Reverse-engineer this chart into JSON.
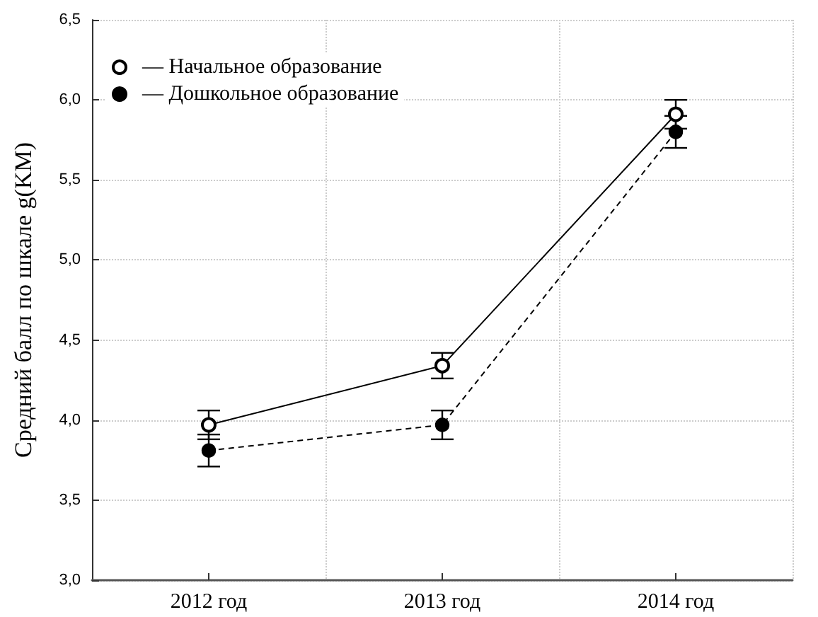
{
  "chart_data": {
    "type": "line",
    "ylabel": "Средний балл по шкале g(KM)",
    "categories": [
      "2012 год",
      "2013 год",
      "2014 год"
    ],
    "series": [
      {
        "name": "— Начальное образование",
        "color": "#000000",
        "values": [
          3.97,
          4.34,
          5.91
        ],
        "errors": [
          0.09,
          0.08,
          0.09
        ],
        "line_style": "solid"
      },
      {
        "name": "— Дошкольное образование",
        "color": "#000000",
        "values": [
          3.81,
          3.97,
          5.8
        ],
        "errors": [
          0.1,
          0.09,
          0.1
        ],
        "line_style": "dashed"
      }
    ],
    "ylim": [
      3.0,
      6.5
    ],
    "yticks": [
      {
        "value": 3.0,
        "label": "3,0"
      },
      {
        "value": 3.5,
        "label": "3,5"
      },
      {
        "value": 4.0,
        "label": "4,0"
      },
      {
        "value": 4.5,
        "label": "4,5"
      },
      {
        "value": 5.0,
        "label": "5,0"
      },
      {
        "value": 5.5,
        "label": "5,5"
      },
      {
        "value": 6.0,
        "label": "6,0"
      },
      {
        "value": 6.5,
        "label": "6,5"
      }
    ],
    "grid": true,
    "legend": "top left",
    "marker": "circle"
  }
}
